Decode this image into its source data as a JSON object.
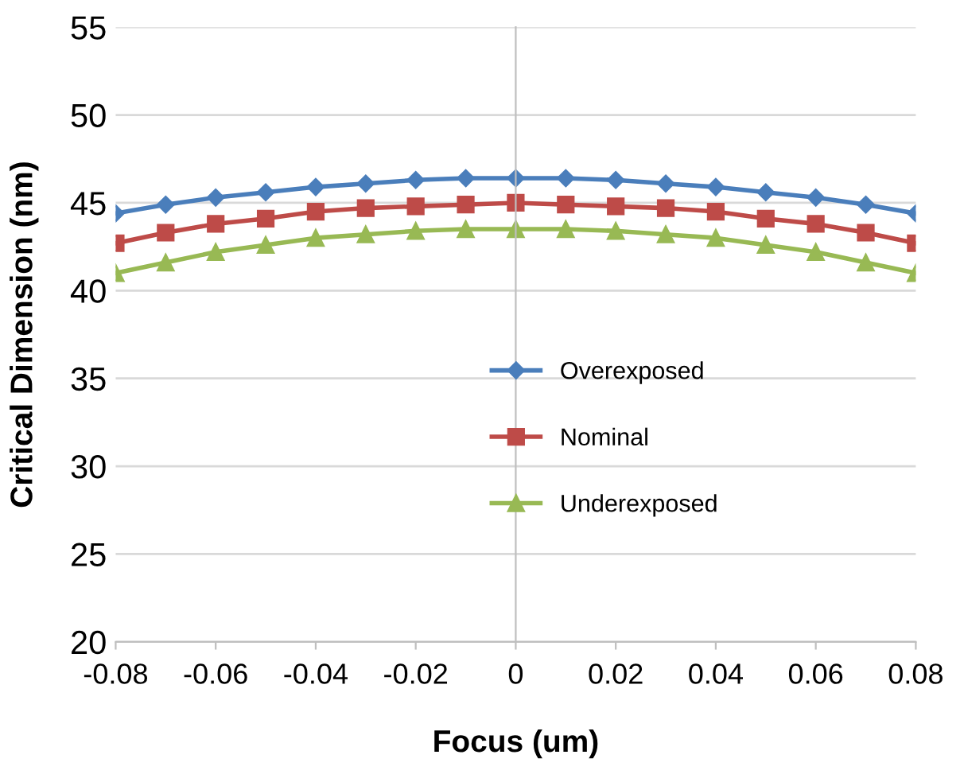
{
  "chart_data": {
    "type": "line",
    "xlabel": "Focus (um)",
    "ylabel": "Critical Dimension (nm)",
    "x": [
      -0.08,
      -0.07,
      -0.06,
      -0.05,
      -0.04,
      -0.03,
      -0.02,
      -0.01,
      0,
      0.01,
      0.02,
      0.03,
      0.04,
      0.05,
      0.06,
      0.07,
      0.08
    ],
    "series": [
      {
        "name": "Overexposed",
        "color": "#4a7ebb",
        "marker": "diamond",
        "values": [
          44.4,
          44.9,
          45.3,
          45.6,
          45.9,
          46.1,
          46.3,
          46.4,
          46.4,
          46.4,
          46.3,
          46.1,
          45.9,
          45.6,
          45.3,
          44.9,
          44.4
        ]
      },
      {
        "name": "Nominal",
        "color": "#be4b48",
        "marker": "square",
        "values": [
          42.7,
          43.3,
          43.8,
          44.1,
          44.5,
          44.7,
          44.8,
          44.9,
          45.0,
          44.9,
          44.8,
          44.7,
          44.5,
          44.1,
          43.8,
          43.3,
          42.7
        ]
      },
      {
        "name": "Underexposed",
        "color": "#98b954",
        "marker": "triangle",
        "values": [
          41.0,
          41.6,
          42.2,
          42.6,
          43.0,
          43.2,
          43.4,
          43.5,
          43.5,
          43.5,
          43.4,
          43.2,
          43.0,
          42.6,
          42.2,
          41.6,
          41.0
        ]
      }
    ],
    "xlim": [
      -0.08,
      0.08
    ],
    "xticks": [
      {
        "value": -0.08,
        "label": "-0.08"
      },
      {
        "value": -0.06,
        "label": "-0.06"
      },
      {
        "value": -0.04,
        "label": "-0.04"
      },
      {
        "value": -0.02,
        "label": "-0.02"
      },
      0,
      {
        "value": 0.02,
        "label": "0.02"
      },
      {
        "value": 0.04,
        "label": "0.04"
      },
      {
        "value": 0.06,
        "label": "0.06"
      },
      {
        "value": 0.08,
        "label": "0.08"
      }
    ],
    "ylim": [
      20,
      55
    ],
    "yticks": [
      20,
      25,
      30,
      35,
      40,
      45,
      50,
      55
    ],
    "grid": "y",
    "legend": "center right",
    "line_style": "solid"
  }
}
